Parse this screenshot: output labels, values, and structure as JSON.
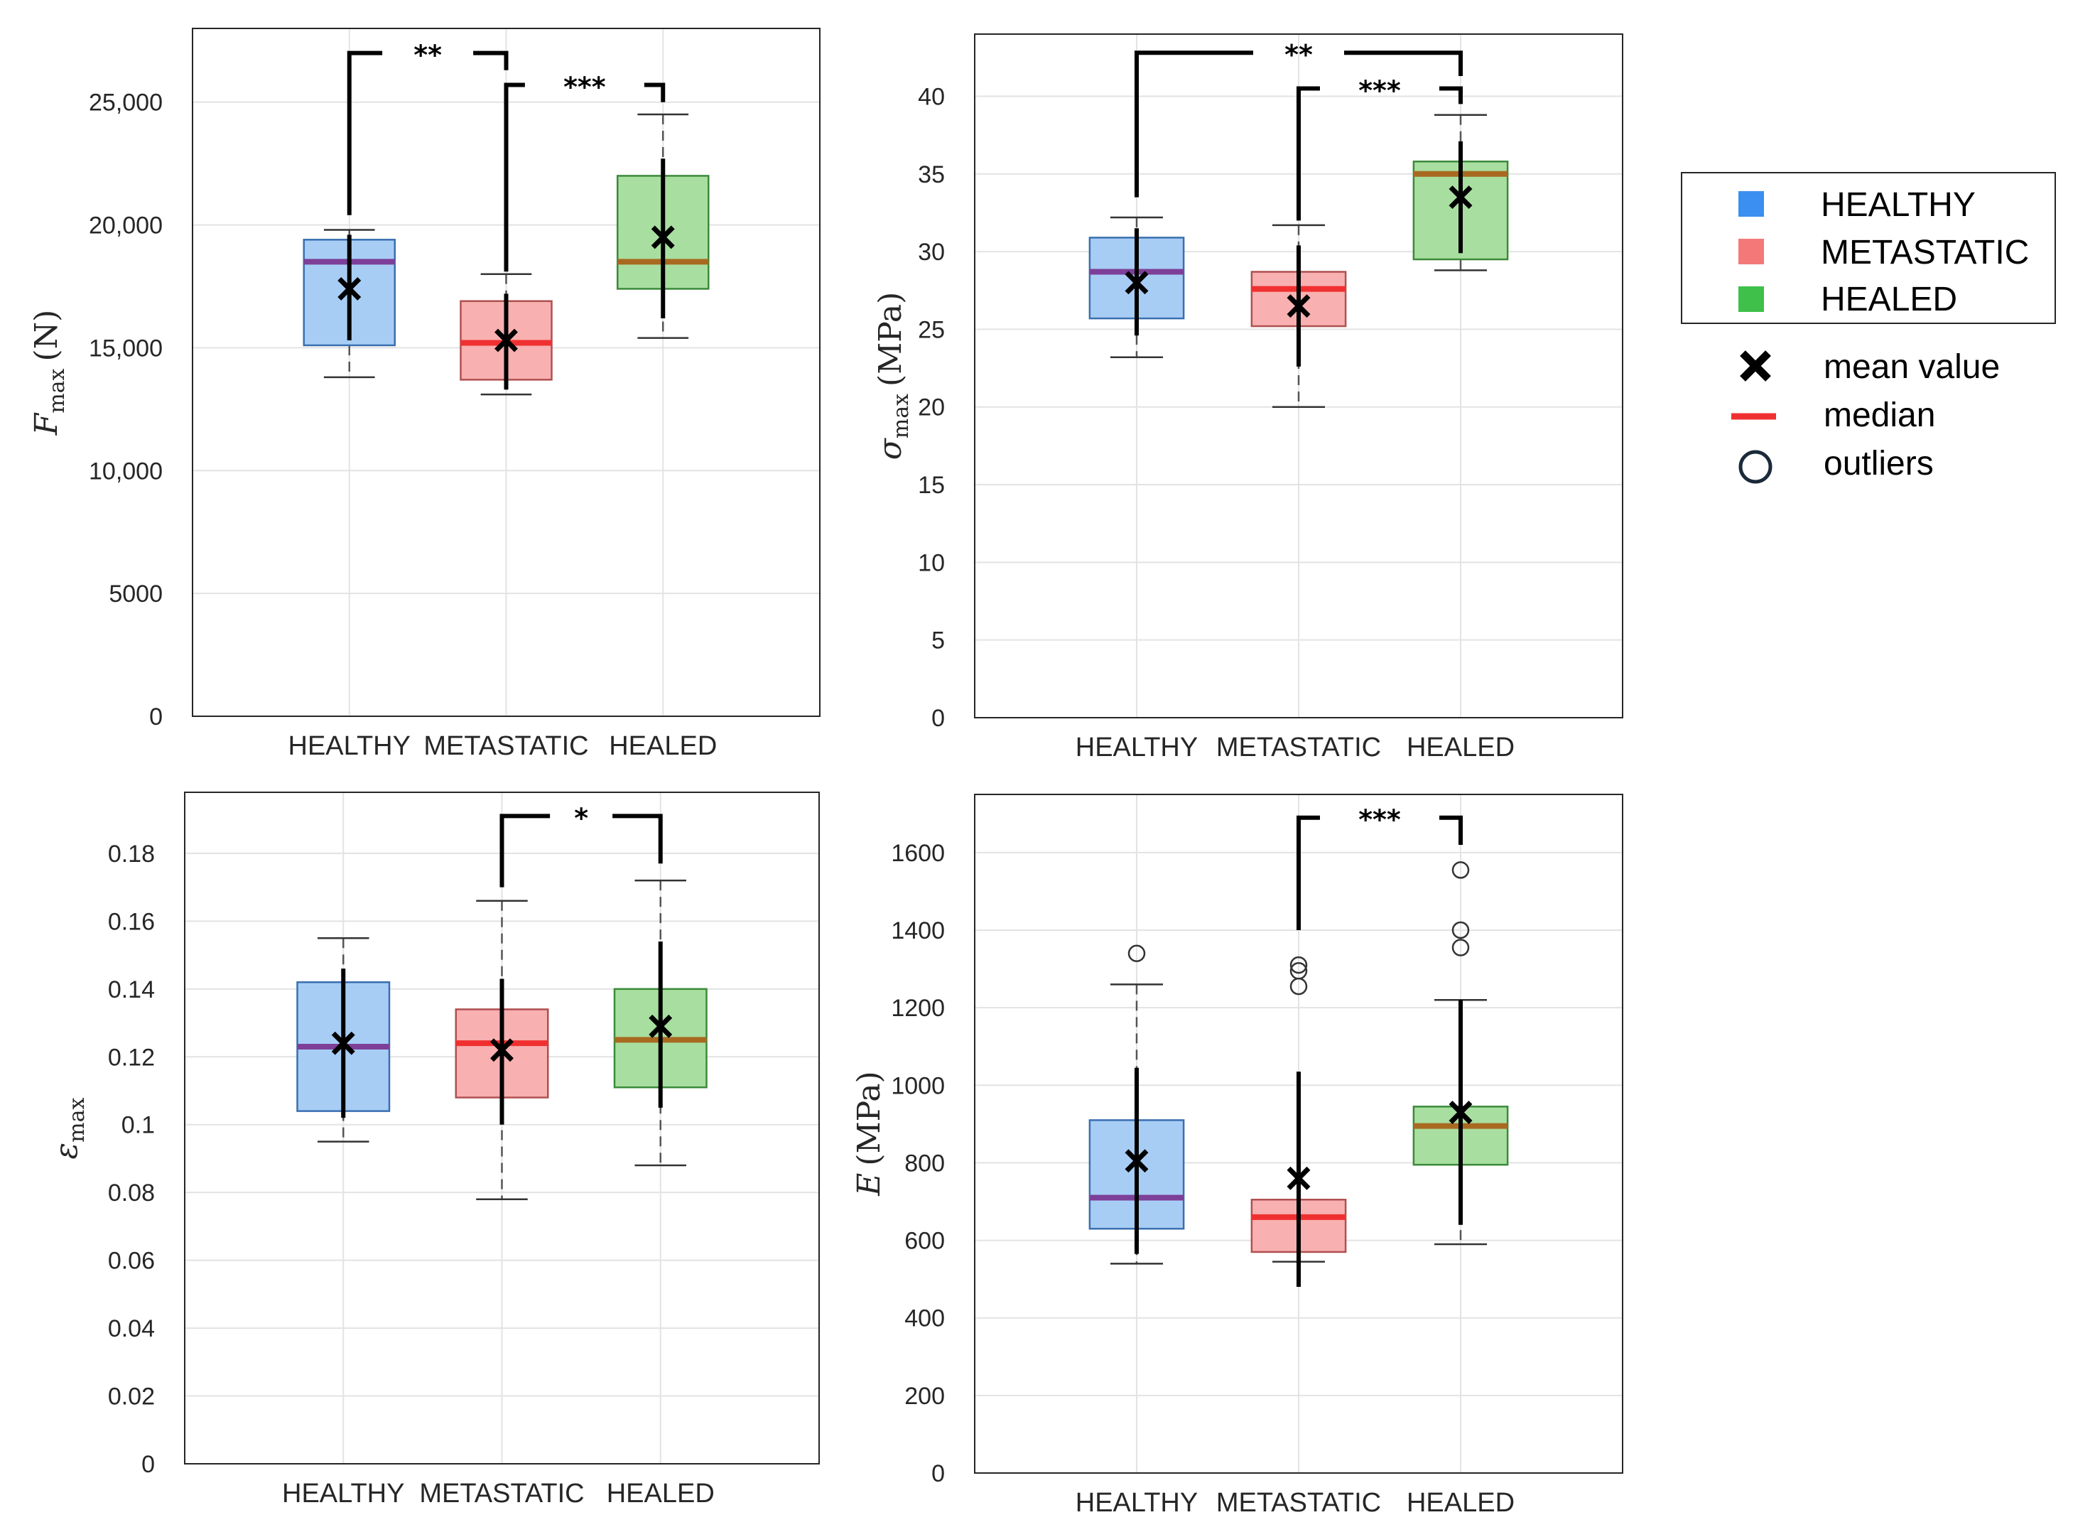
{
  "legend": {
    "groups": [
      {
        "label": "HEALTHY",
        "color": "#3b8ff0"
      },
      {
        "label": "METASTATIC",
        "color": "#f47878"
      },
      {
        "label": "HEALED",
        "color": "#3ec04a"
      }
    ],
    "markers": [
      {
        "label": "mean value",
        "symbol": "x-icon"
      },
      {
        "label": "median",
        "symbol": "line-icon"
      },
      {
        "label": "outliers",
        "symbol": "circle-icon"
      }
    ]
  },
  "chart_data": [
    {
      "type": "box",
      "ylabel_sym": "F",
      "ylabel_sub": "max",
      "ylabel_unit": "(N)",
      "categories": [
        "HEALTHY",
        "METASTATIC",
        "HEALED"
      ],
      "ylim": [
        0,
        28000
      ],
      "yticks": [
        0,
        5000,
        10000,
        15000,
        20000,
        25000
      ],
      "ytick_labels": [
        "0",
        "5000",
        "10,000",
        "15,000",
        "20,000",
        "25,000"
      ],
      "boxes": [
        {
          "q1": 15100,
          "median": 18500,
          "q3": 19400,
          "wlo": 13800,
          "whi": 19800,
          "mean": 17400,
          "sdlo": 15300,
          "sdhi": 19600,
          "outliers": []
        },
        {
          "q1": 13700,
          "median": 15200,
          "q3": 16900,
          "wlo": 13100,
          "whi": 18000,
          "mean": 15300,
          "sdlo": 13300,
          "sdhi": 17200,
          "outliers": []
        },
        {
          "q1": 17400,
          "median": 18500,
          "q3": 22000,
          "wlo": 15400,
          "whi": 24500,
          "mean": 19500,
          "sdlo": 16200,
          "sdhi": 22700,
          "outliers": []
        }
      ],
      "brackets": [
        {
          "from": 0,
          "to": 1,
          "label": "**",
          "level": 27000,
          "low_from": 20400,
          "low_to": 26300
        },
        {
          "from": 1,
          "to": 2,
          "label": "***",
          "level": 25700,
          "low_from": 18100,
          "low_to": 25000
        }
      ]
    },
    {
      "type": "box",
      "ylabel_sym": "σ",
      "ylabel_sub": "max",
      "ylabel_unit": "(MPa)",
      "categories": [
        "HEALTHY",
        "METASTATIC",
        "HEALED"
      ],
      "ylim": [
        0,
        44
      ],
      "yticks": [
        0,
        5,
        10,
        15,
        20,
        25,
        30,
        35,
        40
      ],
      "ytick_labels": [
        "0",
        "5",
        "10",
        "15",
        "20",
        "25",
        "30",
        "35",
        "40"
      ],
      "boxes": [
        {
          "q1": 25.7,
          "median": 28.7,
          "q3": 30.9,
          "wlo": 23.2,
          "whi": 32.2,
          "mean": 28.0,
          "sdlo": 24.6,
          "sdhi": 31.5,
          "outliers": []
        },
        {
          "q1": 25.2,
          "median": 27.6,
          "q3": 28.7,
          "wlo": 20.0,
          "whi": 31.7,
          "mean": 26.5,
          "sdlo": 22.6,
          "sdhi": 30.4,
          "outliers": []
        },
        {
          "q1": 29.5,
          "median": 35.0,
          "q3": 35.8,
          "wlo": 28.8,
          "whi": 38.8,
          "mean": 33.5,
          "sdlo": 29.9,
          "sdhi": 37.1,
          "outliers": []
        }
      ],
      "brackets": [
        {
          "from": 0,
          "to": 2,
          "label": "**",
          "level": 42.8,
          "low_from": 33.5,
          "low_to": 41.3
        },
        {
          "from": 1,
          "to": 2,
          "label": "***",
          "level": 40.5,
          "low_from": 32.0,
          "low_to": 39.5
        }
      ]
    },
    {
      "type": "box",
      "ylabel_sym": "ε",
      "ylabel_sub": "max",
      "ylabel_unit": "",
      "categories": [
        "HEALTHY",
        "METASTATIC",
        "HEALED"
      ],
      "ylim": [
        0,
        0.198
      ],
      "yticks": [
        0,
        0.02,
        0.04,
        0.06,
        0.08,
        0.1,
        0.12,
        0.14,
        0.16,
        0.18
      ],
      "ytick_labels": [
        "0",
        "0.02",
        "0.04",
        "0.06",
        "0.08",
        "0.1",
        "0.12",
        "0.14",
        "0.16",
        "0.18"
      ],
      "boxes": [
        {
          "q1": 0.104,
          "median": 0.123,
          "q3": 0.142,
          "wlo": 0.095,
          "whi": 0.155,
          "mean": 0.124,
          "sdlo": 0.102,
          "sdhi": 0.146,
          "outliers": []
        },
        {
          "q1": 0.108,
          "median": 0.124,
          "q3": 0.134,
          "wlo": 0.078,
          "whi": 0.166,
          "mean": 0.122,
          "sdlo": 0.1,
          "sdhi": 0.143,
          "outliers": []
        },
        {
          "q1": 0.111,
          "median": 0.125,
          "q3": 0.14,
          "wlo": 0.088,
          "whi": 0.172,
          "mean": 0.129,
          "sdlo": 0.105,
          "sdhi": 0.154,
          "outliers": []
        }
      ],
      "brackets": [
        {
          "from": 1,
          "to": 2,
          "label": "*",
          "level": 0.191,
          "low_from": 0.17,
          "low_to": 0.177
        }
      ]
    },
    {
      "type": "box",
      "ylabel_sym": "E",
      "ylabel_sub": "",
      "ylabel_unit": "(MPa)",
      "categories": [
        "HEALTHY",
        "METASTATIC",
        "HEALED"
      ],
      "ylim": [
        0,
        1750
      ],
      "yticks": [
        0,
        200,
        400,
        600,
        800,
        1000,
        1200,
        1400,
        1600
      ],
      "ytick_labels": [
        "0",
        "200",
        "400",
        "600",
        "800",
        "1000",
        "1200",
        "1400",
        "1600"
      ],
      "boxes": [
        {
          "q1": 630,
          "median": 710,
          "q3": 910,
          "wlo": 540,
          "whi": 1260,
          "mean": 805,
          "sdlo": 565,
          "sdhi": 1045,
          "outliers": [
            1340
          ]
        },
        {
          "q1": 570,
          "median": 660,
          "q3": 705,
          "wlo": 545,
          "whi": 705,
          "mean": 760,
          "sdlo": 480,
          "sdhi": 1035,
          "outliers": [
            1255,
            1295,
            1310
          ]
        },
        {
          "q1": 795,
          "median": 895,
          "q3": 945,
          "wlo": 590,
          "whi": 1220,
          "mean": 930,
          "sdlo": 640,
          "sdhi": 1220,
          "outliers": [
            1355,
            1400,
            1555
          ]
        }
      ],
      "brackets": [
        {
          "from": 1,
          "to": 2,
          "label": "***",
          "level": 1690,
          "low_from": 1400,
          "low_to": 1620
        }
      ]
    }
  ]
}
